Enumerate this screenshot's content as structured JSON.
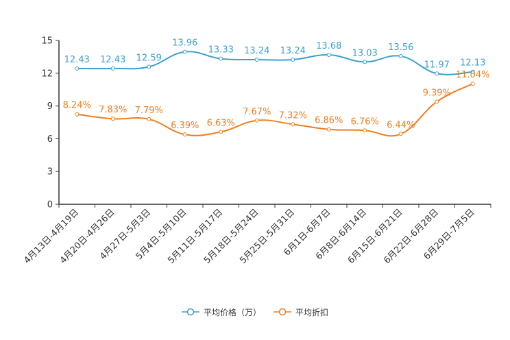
{
  "chart_data": {
    "type": "line",
    "title": "",
    "xlabel": "",
    "ylabel": "",
    "ylim": [
      0,
      15
    ],
    "yticks": [
      0,
      3,
      6,
      9,
      12,
      15
    ],
    "ytick_labels": [
      "0",
      "3",
      "6",
      "9",
      "12",
      "15"
    ],
    "grid": false,
    "legend_position": "bottom-center",
    "categories": [
      "4月13日-4月19日",
      "4月20日-4月26日",
      "4月27日-5月3日",
      "5月4日-5月10日",
      "5月11日-5月17日",
      "5月18日-5月24日",
      "5月25日-5月31日",
      "6月1日-6月7日",
      "6月8日-6月14日",
      "6月15日-6月21日",
      "6月22日-6月28日",
      "6月29日-7月5日"
    ],
    "series": [
      {
        "name": "平均价格（万）",
        "color": "#3a9fd0",
        "values": [
          12.43,
          12.43,
          12.59,
          13.96,
          13.33,
          13.24,
          13.24,
          13.68,
          13.03,
          13.56,
          11.97,
          12.13
        ],
        "labels": [
          "12.43",
          "12.43",
          "12.59",
          "13.96",
          "13.33",
          "13.24",
          "13.24",
          "13.68",
          "13.03",
          "13.56",
          "11.97",
          "12.13"
        ]
      },
      {
        "name": "平均折扣",
        "color": "#f07d1d",
        "values": [
          8.24,
          7.83,
          7.79,
          6.39,
          6.63,
          7.67,
          7.32,
          6.86,
          6.76,
          6.44,
          9.39,
          11.04
        ],
        "labels": [
          "8.24%",
          "7.83%",
          "7.79%",
          "6.39%",
          "6.63%",
          "7.67%",
          "7.32%",
          "6.86%",
          "6.76%",
          "6.44%",
          "9.39%",
          "11.04%"
        ]
      }
    ]
  }
}
